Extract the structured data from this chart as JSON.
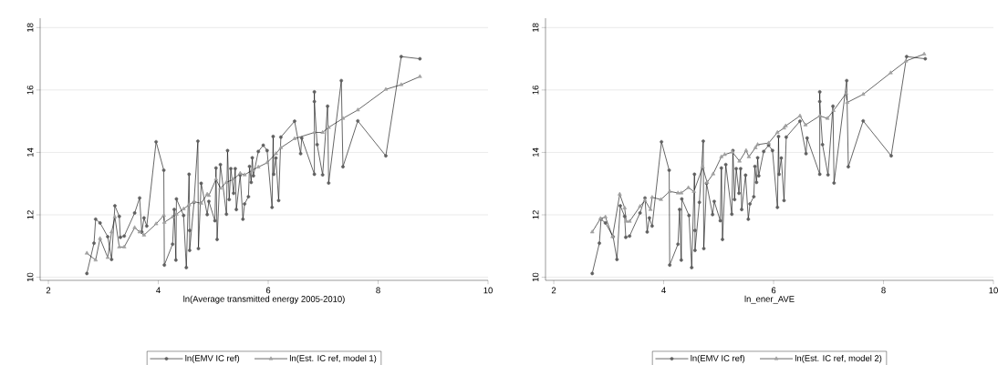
{
  "chart_data": [
    {
      "type": "line",
      "xlabel": "ln(Average transmitted energy 2005-2010)",
      "xlim": [
        1.85,
        10
      ],
      "ylim": [
        9.9,
        18.3
      ],
      "xticks": [
        2,
        4,
        6,
        8,
        10
      ],
      "yticks": [
        10,
        12,
        14,
        16,
        18
      ],
      "grid": "y",
      "legend": "bottom",
      "series": [
        {
          "name": "ln(EMV IC ref)",
          "color": "#606060",
          "marker": "circle",
          "x": [
            2.7,
            2.83,
            2.86,
            2.94,
            3.08,
            3.15,
            3.21,
            3.29,
            3.31,
            3.38,
            3.57,
            3.66,
            3.7,
            3.74,
            3.79,
            3.96,
            4.1,
            4.11,
            4.26,
            4.29,
            4.32,
            4.33,
            4.46,
            4.51,
            4.56,
            4.57,
            4.57,
            4.65,
            4.72,
            4.73,
            4.78,
            4.89,
            4.92,
            5.03,
            5.05,
            5.07,
            5.13,
            5.24,
            5.26,
            5.29,
            5.32,
            5.37,
            5.4,
            5.42,
            5.49,
            5.54,
            5.57,
            5.64,
            5.66,
            5.69,
            5.71,
            5.73,
            5.82,
            5.91,
            5.98,
            6.07,
            6.09,
            6.1,
            6.14,
            6.19,
            6.23,
            6.48,
            6.59,
            6.61,
            6.84,
            6.84,
            6.84,
            6.89,
            6.99,
            7.08,
            7.1,
            7.33,
            7.36,
            7.63,
            8.14,
            8.42,
            8.76
          ],
          "values": [
            10.12,
            11.09,
            11.86,
            11.74,
            11.3,
            10.57,
            12.29,
            11.95,
            11.28,
            11.32,
            12.06,
            12.54,
            11.45,
            11.9,
            11.64,
            14.34,
            13.43,
            10.39,
            11.06,
            12.17,
            10.55,
            12.51,
            11.98,
            10.31,
            13.3,
            11.5,
            10.86,
            12.4,
            14.36,
            10.92,
            13.01,
            12.01,
            12.43,
            11.81,
            13.5,
            11.21,
            13.61,
            12.02,
            14.06,
            12.49,
            13.48,
            12.69,
            13.48,
            12.17,
            13.27,
            11.86,
            12.35,
            12.58,
            13.55,
            13.04,
            13.83,
            13.25,
            14.03,
            14.23,
            14.06,
            12.24,
            14.51,
            13.3,
            13.82,
            12.46,
            14.49,
            15.0,
            13.96,
            14.46,
            13.3,
            15.94,
            15.63,
            14.25,
            13.28,
            15.48,
            13.02,
            16.3,
            13.54,
            15.01,
            13.89,
            17.07,
            17.0
          ]
        },
        {
          "name": "ln(Est. IC ref, model 1)",
          "color": "#a0a0a0",
          "marker": "triangle",
          "x": [
            2.7,
            2.86,
            2.94,
            3.08,
            3.15,
            3.21,
            3.29,
            3.38,
            3.57,
            3.66,
            3.74,
            3.96,
            4.1,
            4.11,
            4.26,
            4.33,
            4.46,
            4.56,
            4.65,
            4.78,
            4.89,
            4.92,
            5.05,
            5.13,
            5.24,
            5.37,
            5.49,
            5.57,
            5.71,
            5.82,
            5.98,
            6.14,
            6.23,
            6.48,
            6.84,
            6.99,
            7.1,
            7.36,
            7.63,
            8.14,
            8.42,
            8.76
          ],
          "values": [
            10.77,
            10.55,
            11.24,
            10.63,
            11.45,
            11.93,
            10.97,
            10.97,
            11.59,
            11.45,
            11.35,
            11.71,
            11.98,
            11.76,
            11.93,
            12.02,
            12.19,
            12.32,
            12.42,
            12.37,
            12.66,
            12.62,
            13.14,
            12.85,
            13.04,
            13.14,
            13.33,
            13.28,
            13.43,
            13.53,
            13.67,
            13.96,
            14.15,
            14.44,
            14.64,
            14.64,
            14.8,
            15.09,
            15.36,
            16.02,
            16.17,
            16.43
          ]
        }
      ]
    },
    {
      "type": "line",
      "xlabel": "ln_ener_AVE",
      "xlim": [
        1.85,
        10
      ],
      "ylim": [
        9.9,
        18.3
      ],
      "xticks": [
        2,
        4,
        6,
        8,
        10
      ],
      "yticks": [
        10,
        12,
        14,
        16,
        18
      ],
      "grid": "y",
      "legend": "bottom",
      "series": [
        {
          "name": "ln(EMV IC ref)",
          "color": "#606060",
          "marker": "circle",
          "x": [
            2.7,
            2.83,
            2.86,
            2.94,
            3.08,
            3.15,
            3.21,
            3.29,
            3.31,
            3.38,
            3.57,
            3.66,
            3.7,
            3.74,
            3.79,
            3.96,
            4.1,
            4.11,
            4.26,
            4.29,
            4.32,
            4.33,
            4.46,
            4.51,
            4.56,
            4.57,
            4.57,
            4.65,
            4.72,
            4.73,
            4.78,
            4.89,
            4.92,
            5.03,
            5.05,
            5.07,
            5.13,
            5.24,
            5.26,
            5.29,
            5.32,
            5.37,
            5.4,
            5.42,
            5.49,
            5.54,
            5.57,
            5.64,
            5.66,
            5.69,
            5.71,
            5.73,
            5.82,
            5.91,
            5.98,
            6.07,
            6.09,
            6.1,
            6.14,
            6.19,
            6.23,
            6.48,
            6.59,
            6.61,
            6.84,
            6.84,
            6.84,
            6.89,
            6.99,
            7.08,
            7.1,
            7.33,
            7.36,
            7.63,
            8.14,
            8.42,
            8.76
          ],
          "values": [
            10.12,
            11.09,
            11.86,
            11.74,
            11.3,
            10.57,
            12.29,
            11.95,
            11.28,
            11.32,
            12.06,
            12.54,
            11.45,
            11.9,
            11.64,
            14.34,
            13.43,
            10.39,
            11.06,
            12.17,
            10.55,
            12.51,
            11.98,
            10.31,
            13.3,
            11.5,
            10.86,
            12.4,
            14.36,
            10.92,
            13.01,
            12.01,
            12.43,
            11.81,
            13.5,
            11.21,
            13.61,
            12.02,
            14.06,
            12.49,
            13.48,
            12.69,
            13.48,
            12.17,
            13.27,
            11.86,
            12.35,
            12.58,
            13.55,
            13.04,
            13.83,
            13.25,
            14.03,
            14.23,
            14.06,
            12.24,
            14.51,
            13.3,
            13.82,
            12.46,
            14.49,
            15.0,
            13.96,
            14.46,
            13.3,
            15.94,
            15.63,
            14.25,
            13.28,
            15.48,
            13.02,
            16.3,
            13.54,
            15.01,
            13.89,
            17.07,
            17.0
          ]
        },
        {
          "name": "ln(Est. IC ref, model 2)",
          "color": "#a0a0a0",
          "marker": "triangle",
          "x": [
            2.7,
            2.85,
            2.94,
            3.07,
            3.2,
            3.29,
            3.32,
            3.38,
            3.57,
            3.66,
            3.76,
            3.79,
            3.95,
            4.11,
            4.26,
            4.32,
            4.45,
            4.55,
            4.71,
            4.79,
            4.9,
            5.05,
            5.11,
            5.25,
            5.38,
            5.5,
            5.55,
            5.67,
            5.71,
            5.91,
            6.07,
            6.19,
            6.22,
            6.48,
            6.58,
            6.84,
            6.98,
            7.09,
            7.32,
            7.34,
            7.63,
            8.13,
            8.41,
            8.74
          ],
          "values": [
            11.45,
            11.88,
            11.93,
            11.3,
            12.66,
            12.22,
            11.79,
            11.79,
            12.27,
            12.46,
            12.17,
            12.56,
            12.49,
            12.75,
            12.7,
            12.7,
            12.87,
            12.75,
            13.53,
            13.04,
            13.31,
            13.86,
            13.93,
            14.01,
            13.72,
            14.06,
            13.86,
            14.15,
            14.25,
            14.3,
            14.64,
            14.78,
            14.85,
            15.17,
            14.88,
            15.17,
            15.09,
            15.34,
            15.89,
            15.6,
            15.86,
            16.55,
            16.93,
            17.15
          ]
        }
      ]
    }
  ]
}
